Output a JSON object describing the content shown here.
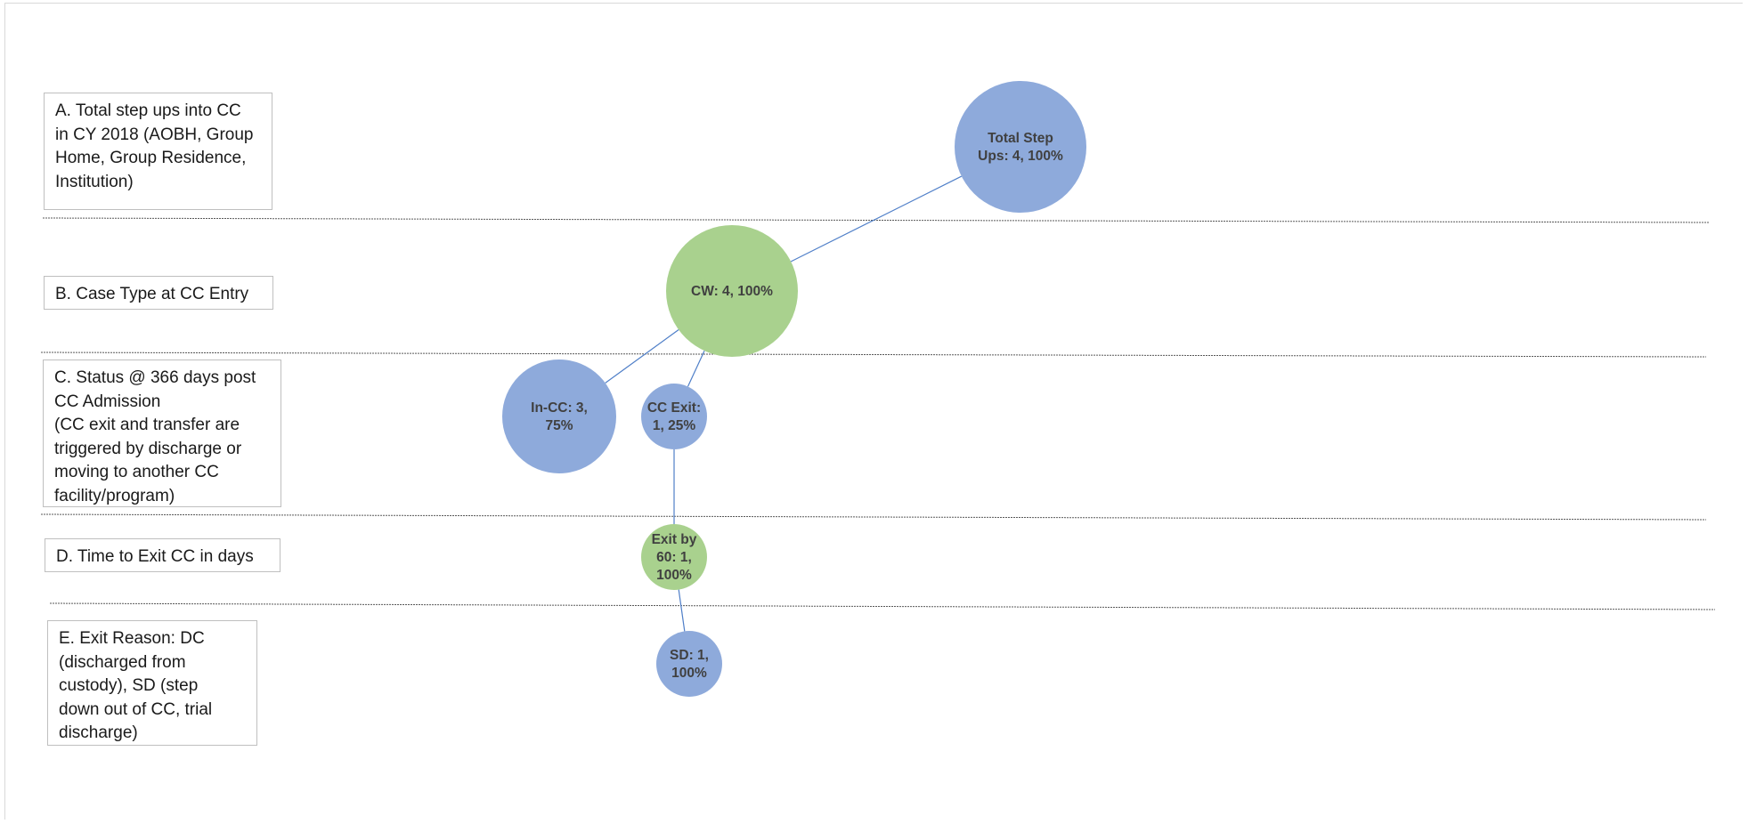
{
  "colors": {
    "blue": "#8eaadb",
    "green": "#a9d18e",
    "connector": "#4f7fc8",
    "divider": "#595959",
    "box_border": "#bfbfbf"
  },
  "levels": [
    {
      "id": "a",
      "text": "A. Total step ups into CC\nin CY 2018 (AOBH, Group\nHome, Group Residence,\nInstitution)"
    },
    {
      "id": "b",
      "text": "B. Case Type at CC Entry"
    },
    {
      "id": "c",
      "text": "C. Status @ 366 days post\nCC Admission\n(CC exit and transfer are\ntriggered by discharge or\nmoving to another CC\nfacility/program)"
    },
    {
      "id": "d",
      "text": "D. Time to Exit CC in days"
    },
    {
      "id": "e",
      "text": "E. Exit Reason: DC\n(discharged from\ncustody), SD (step\ndown out of CC, trial\ndischarge)"
    }
  ],
  "nodes": [
    {
      "id": "total",
      "lines": [
        "Total Step",
        "Ups: 4, 100%"
      ],
      "color": "blue",
      "count": 4,
      "percent": 100
    },
    {
      "id": "cw",
      "lines": [
        "CW: 4,  100%"
      ],
      "color": "green",
      "count": 4,
      "percent": 100
    },
    {
      "id": "incc",
      "lines": [
        "In-CC: 3,",
        "75%"
      ],
      "color": "blue",
      "count": 3,
      "percent": 75
    },
    {
      "id": "ccexit",
      "lines": [
        "CC Exit:",
        "1, 25%"
      ],
      "color": "blue",
      "count": 1,
      "percent": 25
    },
    {
      "id": "exit60",
      "lines": [
        "Exit by",
        "60: 1,",
        "100%"
      ],
      "color": "green",
      "count": 1,
      "percent": 100
    },
    {
      "id": "sd",
      "lines": [
        "SD: 1,",
        "100%"
      ],
      "color": "blue",
      "count": 1,
      "percent": 100
    }
  ],
  "edges": [
    {
      "from": "total",
      "to": "cw"
    },
    {
      "from": "cw",
      "to": "incc"
    },
    {
      "from": "cw",
      "to": "ccexit"
    },
    {
      "from": "ccexit",
      "to": "exit60"
    },
    {
      "from": "exit60",
      "to": "sd"
    }
  ]
}
